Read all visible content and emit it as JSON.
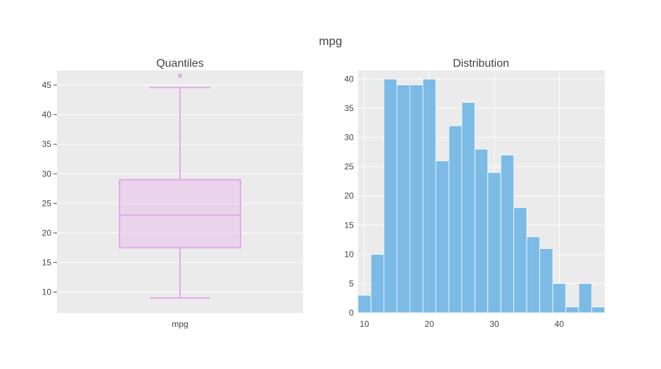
{
  "title": "mpg",
  "colors": {
    "box": "#e6a8ea",
    "hist": "#7cbbe6",
    "plot_bg": "#ebebeb",
    "grid": "#ffffff"
  },
  "chart_data": [
    {
      "type": "box",
      "title": "Quantiles",
      "category": "mpg",
      "ylim": [
        6.5,
        47.5
      ],
      "yticks": [
        10,
        15,
        20,
        25,
        30,
        35,
        40,
        45
      ],
      "grid": true,
      "stats": {
        "min": 9,
        "q1": 17.5,
        "median": 23,
        "q3": 29,
        "max": 44.6,
        "outliers": [
          46.6
        ]
      }
    },
    {
      "type": "bar",
      "title": "Distribution",
      "xlim": [
        9,
        47
      ],
      "ylim": [
        0,
        41.5
      ],
      "xticks": [
        10,
        20,
        30,
        40
      ],
      "yticks": [
        0,
        5,
        10,
        15,
        20,
        25,
        30,
        35,
        40
      ],
      "grid": true,
      "bin_width": 2,
      "bin_start": 9,
      "counts": [
        3,
        10,
        40,
        39,
        39,
        40,
        26,
        32,
        36,
        28,
        24,
        27,
        18,
        13,
        11,
        5,
        1,
        5,
        1
      ]
    }
  ]
}
